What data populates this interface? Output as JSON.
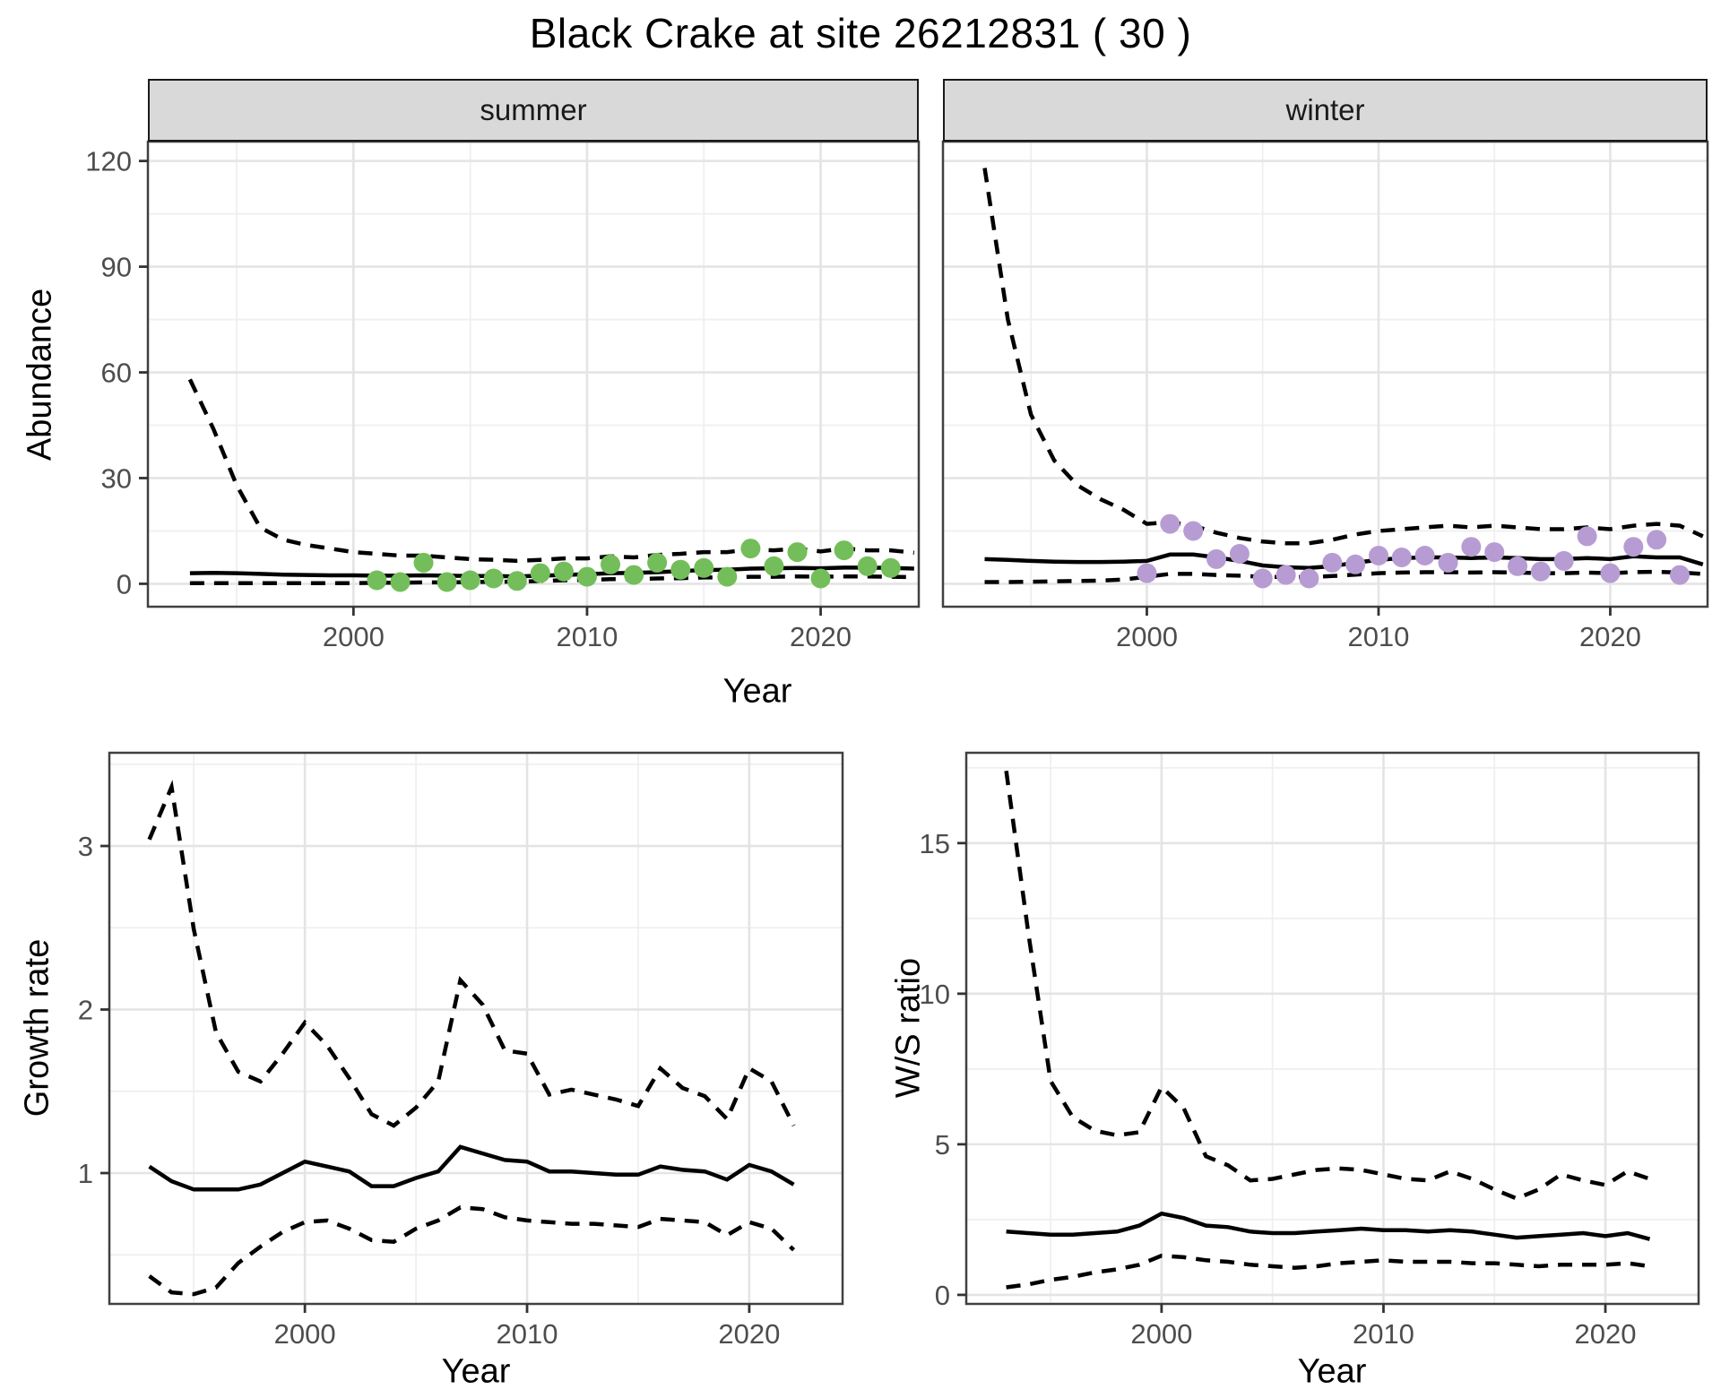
{
  "title": "Black Crake at site 26212831 ( 30 )",
  "colors": {
    "summer_point": "#73be5a",
    "winter_point": "#b79cd3",
    "line": "#000000",
    "panel_border": "#404040",
    "strip_bg": "#d9d9d9",
    "grid_major": "#e4e4e4",
    "grid_minor": "#efefef",
    "tick_text": "#4d4d4d"
  },
  "chart_data": [
    {
      "id": "abundance-summer",
      "type": "line",
      "facet": "summer",
      "xlabel": "Year",
      "ylabel": "Abundance",
      "xlim": [
        1991.2,
        2024.2
      ],
      "ylim": [
        -6.5,
        125.5
      ],
      "x_ticks": [
        2000,
        2010,
        2020
      ],
      "x_minor": [
        1995,
        2005,
        2015
      ],
      "y_ticks": [
        0,
        30,
        60,
        90,
        120
      ],
      "y_minor": [
        15,
        45,
        75,
        105
      ],
      "grid": true,
      "legend": "none",
      "series": [
        {
          "name": "upper_ci",
          "line": "dashed",
          "years": [
            1993,
            1994,
            1995,
            1996,
            1997,
            1998,
            1999,
            2000,
            2001,
            2002,
            2003,
            2004,
            2005,
            2006,
            2007,
            2008,
            2009,
            2010,
            2011,
            2012,
            2013,
            2014,
            2015,
            2016,
            2017,
            2018,
            2019,
            2020,
            2021,
            2022,
            2023,
            2024
          ],
          "values": [
            58,
            44,
            28,
            16,
            12.5,
            11,
            10,
            9,
            8.5,
            8,
            8,
            7.5,
            7,
            6.8,
            6.5,
            6.8,
            7.2,
            7.2,
            7.8,
            7.5,
            8.2,
            8.5,
            9,
            9,
            9.8,
            9.5,
            10,
            9.2,
            10,
            9.5,
            9.5,
            8.8
          ]
        },
        {
          "name": "median",
          "line": "solid",
          "years": [
            1993,
            1994,
            1995,
            1996,
            1997,
            1998,
            1999,
            2000,
            2001,
            2002,
            2003,
            2004,
            2005,
            2006,
            2007,
            2008,
            2009,
            2010,
            2011,
            2012,
            2013,
            2014,
            2015,
            2016,
            2017,
            2018,
            2019,
            2020,
            2021,
            2022,
            2023,
            2024
          ],
          "values": [
            3.0,
            3.1,
            3.0,
            2.8,
            2.6,
            2.5,
            2.4,
            2.4,
            2.3,
            2.3,
            2.4,
            2.3,
            2.2,
            2.2,
            2.1,
            2.3,
            2.5,
            2.7,
            3.0,
            3.1,
            3.3,
            3.6,
            3.9,
            4.0,
            4.3,
            4.4,
            4.5,
            4.4,
            4.6,
            4.6,
            4.5,
            4.3
          ]
        },
        {
          "name": "lower_ci",
          "line": "dashed",
          "years": [
            1993,
            1994,
            1995,
            1996,
            1997,
            1998,
            1999,
            2000,
            2001,
            2002,
            2003,
            2004,
            2005,
            2006,
            2007,
            2008,
            2009,
            2010,
            2011,
            2012,
            2013,
            2014,
            2015,
            2016,
            2017,
            2018,
            2019,
            2020,
            2021,
            2022,
            2023,
            2024
          ],
          "values": [
            0.2,
            0.2,
            0.2,
            0.2,
            0.2,
            0.2,
            0.2,
            0.2,
            0.3,
            0.3,
            0.4,
            0.4,
            0.5,
            0.6,
            0.6,
            0.8,
            1.0,
            1.1,
            1.3,
            1.3,
            1.5,
            1.6,
            1.8,
            1.8,
            2.0,
            2.0,
            2.1,
            2.0,
            2.1,
            2.1,
            2.0,
            1.9
          ]
        }
      ],
      "points": {
        "color": "#73be5a",
        "years": [
          2001,
          2002,
          2003,
          2004,
          2005,
          2006,
          2007,
          2008,
          2009,
          2010,
          2011,
          2012,
          2013,
          2014,
          2015,
          2016,
          2017,
          2018,
          2019,
          2020,
          2021,
          2022,
          2023
        ],
        "values": [
          1,
          0.5,
          6,
          0.5,
          1,
          1.5,
          0.8,
          3,
          3.5,
          2,
          5.5,
          2.5,
          6,
          4,
          4.5,
          2,
          10,
          5,
          9,
          1.5,
          9.5,
          5,
          4.5
        ]
      }
    },
    {
      "id": "abundance-winter",
      "type": "line",
      "facet": "winter",
      "xlabel": "Year",
      "ylabel": "Abundance",
      "xlim": [
        1991.2,
        2024.2
      ],
      "ylim": [
        -6.5,
        125.5
      ],
      "x_ticks": [
        2000,
        2010,
        2020
      ],
      "x_minor": [
        1995,
        2005,
        2015
      ],
      "y_ticks": [
        0,
        30,
        60,
        90,
        120
      ],
      "y_minor": [
        15,
        45,
        75,
        105
      ],
      "grid": true,
      "legend": "none",
      "series": [
        {
          "name": "upper_ci",
          "line": "dashed",
          "years": [
            1993,
            1994,
            1995,
            1996,
            1997,
            1998,
            1999,
            2000,
            2001,
            2002,
            2003,
            2004,
            2005,
            2006,
            2007,
            2008,
            2009,
            2010,
            2011,
            2012,
            2013,
            2014,
            2015,
            2016,
            2017,
            2018,
            2019,
            2020,
            2021,
            2022,
            2023,
            2024
          ],
          "values": [
            118,
            75,
            48,
            35,
            28,
            24,
            21,
            17,
            17.5,
            16.5,
            14.5,
            13,
            12,
            11.5,
            11.5,
            12.5,
            14,
            15,
            15.5,
            16,
            16.5,
            16,
            16.5,
            16,
            15.5,
            15.5,
            16,
            15.5,
            16.5,
            17,
            16.5,
            13.5
          ]
        },
        {
          "name": "median",
          "line": "solid",
          "years": [
            1993,
            1994,
            1995,
            1996,
            1997,
            1998,
            1999,
            2000,
            2001,
            2002,
            2003,
            2004,
            2005,
            2006,
            2007,
            2008,
            2009,
            2010,
            2011,
            2012,
            2013,
            2014,
            2015,
            2016,
            2017,
            2018,
            2019,
            2020,
            2021,
            2022,
            2023,
            2024
          ],
          "values": [
            7.0,
            6.8,
            6.5,
            6.3,
            6.2,
            6.2,
            6.3,
            6.5,
            8.3,
            8.3,
            7.5,
            6.5,
            5.2,
            4.7,
            4.5,
            5.0,
            6.0,
            6.8,
            7.3,
            7.5,
            7.5,
            7.3,
            7.5,
            7.3,
            7.0,
            7.0,
            7.3,
            7.0,
            7.8,
            7.5,
            7.5,
            5.5
          ]
        },
        {
          "name": "lower_ci",
          "line": "dashed",
          "years": [
            1993,
            1994,
            1995,
            1996,
            1997,
            1998,
            1999,
            2000,
            2001,
            2002,
            2003,
            2004,
            2005,
            2006,
            2007,
            2008,
            2009,
            2010,
            2011,
            2012,
            2013,
            2014,
            2015,
            2016,
            2017,
            2018,
            2019,
            2020,
            2021,
            2022,
            2023,
            2024
          ],
          "values": [
            0.5,
            0.5,
            0.6,
            0.7,
            0.8,
            0.9,
            1.2,
            2.0,
            2.8,
            2.8,
            2.5,
            2.3,
            2.0,
            1.9,
            1.9,
            2.2,
            2.6,
            3.0,
            3.2,
            3.3,
            3.3,
            3.2,
            3.3,
            3.2,
            3.0,
            3.0,
            3.2,
            3.0,
            3.3,
            3.4,
            3.2,
            2.8
          ]
        }
      ],
      "points": {
        "color": "#b79cd3",
        "years": [
          2000,
          2001,
          2002,
          2003,
          2004,
          2005,
          2006,
          2007,
          2008,
          2009,
          2010,
          2011,
          2012,
          2013,
          2014,
          2015,
          2016,
          2017,
          2018,
          2019,
          2020,
          2021,
          2022,
          2023
        ],
        "values": [
          3,
          17,
          15,
          7,
          8.5,
          1.5,
          2.5,
          1.5,
          6,
          5.5,
          8,
          7.5,
          8,
          6,
          10.5,
          9,
          5,
          3.5,
          6.5,
          13.5,
          3,
          10.5,
          12.5,
          2.5
        ]
      }
    },
    {
      "id": "growth-rate",
      "type": "line",
      "facet": null,
      "xlabel": "Year",
      "ylabel": "Growth rate",
      "xlim": [
        1991.2,
        2024.2
      ],
      "ylim": [
        0.2,
        3.57
      ],
      "x_ticks": [
        2000,
        2010,
        2020
      ],
      "x_minor": [
        1995,
        2005,
        2015
      ],
      "y_ticks": [
        1,
        2,
        3
      ],
      "y_minor": [
        0.5,
        1.5,
        2.5,
        3.5
      ],
      "grid": true,
      "legend": "none",
      "series": [
        {
          "name": "upper_ci",
          "line": "dashed",
          "years": [
            1993,
            1994,
            1995,
            1996,
            1997,
            1998,
            1999,
            2000,
            2001,
            2002,
            2003,
            2004,
            2005,
            2006,
            2007,
            2008,
            2009,
            2010,
            2011,
            2012,
            2013,
            2014,
            2015,
            2016,
            2017,
            2018,
            2019,
            2020,
            2021,
            2022
          ],
          "values": [
            3.04,
            3.36,
            2.49,
            1.86,
            1.62,
            1.56,
            1.73,
            1.92,
            1.78,
            1.58,
            1.36,
            1.29,
            1.4,
            1.56,
            2.18,
            2.03,
            1.75,
            1.73,
            1.48,
            1.51,
            1.48,
            1.45,
            1.41,
            1.64,
            1.52,
            1.47,
            1.33,
            1.64,
            1.56,
            1.29
          ]
        },
        {
          "name": "median",
          "line": "solid",
          "years": [
            1993,
            1994,
            1995,
            1996,
            1997,
            1998,
            1999,
            2000,
            2001,
            2002,
            2003,
            2004,
            2005,
            2006,
            2007,
            2008,
            2009,
            2010,
            2011,
            2012,
            2013,
            2014,
            2015,
            2016,
            2017,
            2018,
            2019,
            2020,
            2021,
            2022
          ],
          "values": [
            1.04,
            0.95,
            0.9,
            0.9,
            0.9,
            0.93,
            1.0,
            1.07,
            1.04,
            1.01,
            0.92,
            0.92,
            0.97,
            1.01,
            1.16,
            1.12,
            1.08,
            1.07,
            1.01,
            1.01,
            1.0,
            0.99,
            0.99,
            1.04,
            1.02,
            1.01,
            0.96,
            1.05,
            1.01,
            0.93
          ]
        },
        {
          "name": "lower_ci",
          "line": "dashed",
          "years": [
            1993,
            1994,
            1995,
            1996,
            1997,
            1998,
            1999,
            2000,
            2001,
            2002,
            2003,
            2004,
            2005,
            2006,
            2007,
            2008,
            2009,
            2010,
            2011,
            2012,
            2013,
            2014,
            2015,
            2016,
            2017,
            2018,
            2019,
            2020,
            2021,
            2022
          ],
          "values": [
            0.37,
            0.27,
            0.26,
            0.3,
            0.45,
            0.55,
            0.64,
            0.7,
            0.71,
            0.66,
            0.59,
            0.58,
            0.66,
            0.71,
            0.79,
            0.78,
            0.73,
            0.71,
            0.7,
            0.69,
            0.69,
            0.68,
            0.67,
            0.72,
            0.71,
            0.7,
            0.62,
            0.7,
            0.66,
            0.53
          ]
        }
      ],
      "points": null
    },
    {
      "id": "ws-ratio",
      "type": "line",
      "facet": null,
      "xlabel": "Year",
      "ylabel": "W/S ratio",
      "xlim": [
        1991.2,
        2024.2
      ],
      "ylim": [
        -0.3,
        18.0
      ],
      "x_ticks": [
        2000,
        2010,
        2020
      ],
      "x_minor": [
        1995,
        2005,
        2015
      ],
      "y_ticks": [
        0,
        5,
        10,
        15
      ],
      "y_minor": [
        2.5,
        7.5,
        12.5,
        17.5
      ],
      "grid": true,
      "legend": "none",
      "series": [
        {
          "name": "upper_ci",
          "line": "dashed",
          "years": [
            1993,
            1994,
            1995,
            1996,
            1997,
            1998,
            1999,
            2000,
            2001,
            2002,
            2003,
            2004,
            2005,
            2006,
            2007,
            2008,
            2009,
            2010,
            2011,
            2012,
            2013,
            2014,
            2015,
            2016,
            2017,
            2018,
            2019,
            2020,
            2021,
            2022
          ],
          "values": [
            17.4,
            12.0,
            7.1,
            5.9,
            5.45,
            5.3,
            5.4,
            6.9,
            6.2,
            4.6,
            4.3,
            3.8,
            3.85,
            4.0,
            4.15,
            4.2,
            4.15,
            4.0,
            3.85,
            3.8,
            4.1,
            3.85,
            3.5,
            3.2,
            3.5,
            4.0,
            3.8,
            3.65,
            4.1,
            3.85
          ]
        },
        {
          "name": "median",
          "line": "solid",
          "years": [
            1993,
            1994,
            1995,
            1996,
            1997,
            1998,
            1999,
            2000,
            2001,
            2002,
            2003,
            2004,
            2005,
            2006,
            2007,
            2008,
            2009,
            2010,
            2011,
            2012,
            2013,
            2014,
            2015,
            2016,
            2017,
            2018,
            2019,
            2020,
            2021,
            2022
          ],
          "values": [
            2.1,
            2.05,
            2.0,
            2.0,
            2.05,
            2.1,
            2.3,
            2.7,
            2.55,
            2.3,
            2.25,
            2.1,
            2.05,
            2.05,
            2.1,
            2.15,
            2.2,
            2.15,
            2.15,
            2.1,
            2.15,
            2.1,
            2.0,
            1.9,
            1.95,
            2.0,
            2.05,
            1.95,
            2.05,
            1.85
          ]
        },
        {
          "name": "lower_ci",
          "line": "dashed",
          "years": [
            1993,
            1994,
            1995,
            1996,
            1997,
            1998,
            1999,
            2000,
            2001,
            2002,
            2003,
            2004,
            2005,
            2006,
            2007,
            2008,
            2009,
            2010,
            2011,
            2012,
            2013,
            2014,
            2015,
            2016,
            2017,
            2018,
            2019,
            2020,
            2021,
            2022
          ],
          "values": [
            0.25,
            0.35,
            0.5,
            0.6,
            0.75,
            0.85,
            1.0,
            1.3,
            1.25,
            1.15,
            1.1,
            1.0,
            0.95,
            0.9,
            0.95,
            1.05,
            1.1,
            1.15,
            1.1,
            1.1,
            1.1,
            1.05,
            1.05,
            1.0,
            0.95,
            1.0,
            1.0,
            1.0,
            1.05,
            0.95
          ]
        }
      ],
      "points": null
    }
  ]
}
